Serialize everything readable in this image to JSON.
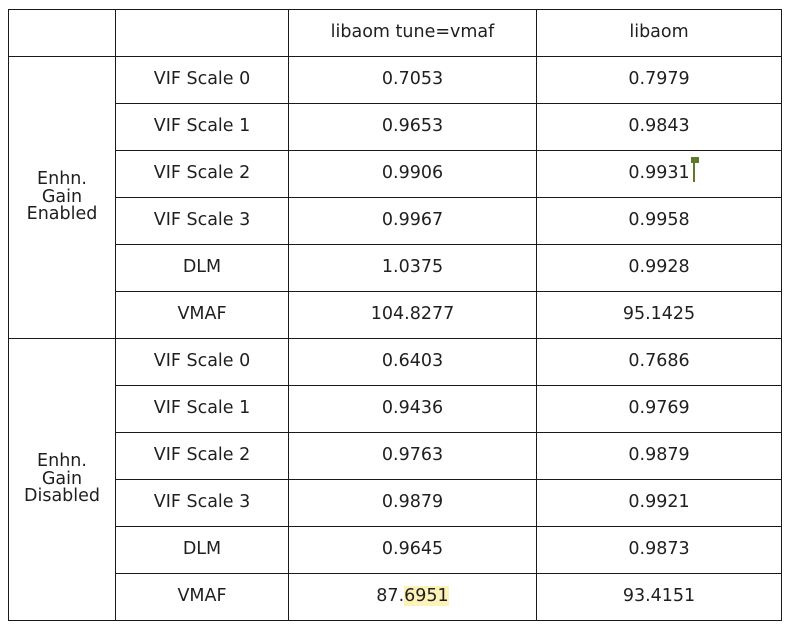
{
  "header": [
    "",
    "",
    "libaom tune=vmaf",
    "libaom"
  ],
  "groups": [
    {
      "label_lines": [
        "Enhn.",
        "Gain",
        "Enabled"
      ],
      "rows": [
        {
          "metric": "VIF Scale 0",
          "tune_vmaf": "0.7053",
          "libaom": "0.7979"
        },
        {
          "metric": "VIF Scale 1",
          "tune_vmaf": "0.9653",
          "libaom": "0.9843"
        },
        {
          "metric": "VIF Scale 2",
          "tune_vmaf": "0.9906",
          "libaom": "0.9931"
        },
        {
          "metric": "VIF Scale 3",
          "tune_vmaf": "0.9967",
          "libaom": "0.9958"
        },
        {
          "metric": "DLM",
          "tune_vmaf": "1.0375",
          "libaom": "0.9928"
        },
        {
          "metric": "VMAF",
          "tune_vmaf": "104.8277",
          "libaom": "95.1425"
        }
      ]
    },
    {
      "label_lines": [
        "Enhn.",
        "Gain",
        "Disabled"
      ],
      "rows": [
        {
          "metric": "VIF Scale 0",
          "tune_vmaf": "0.6403",
          "libaom": "0.7686"
        },
        {
          "metric": "VIF Scale 1",
          "tune_vmaf": "0.9436",
          "libaom": "0.9769"
        },
        {
          "metric": "VIF Scale 2",
          "tune_vmaf": "0.9763",
          "libaom": "0.9879"
        },
        {
          "metric": "VIF Scale 3",
          "tune_vmaf": "0.9879",
          "libaom": "0.9921"
        },
        {
          "metric": "DLM",
          "tune_vmaf": "0.9645",
          "libaom": "0.9873"
        },
        {
          "metric": "VMAF",
          "tune_vmaf_prefix": "87.",
          "tune_vmaf_highlight": "6951",
          "libaom": "93.4151"
        }
      ]
    }
  ],
  "colors": {
    "highlight": "#fdf2b8",
    "cursor": "#5d7a2a",
    "border": "#1a1a1a"
  }
}
